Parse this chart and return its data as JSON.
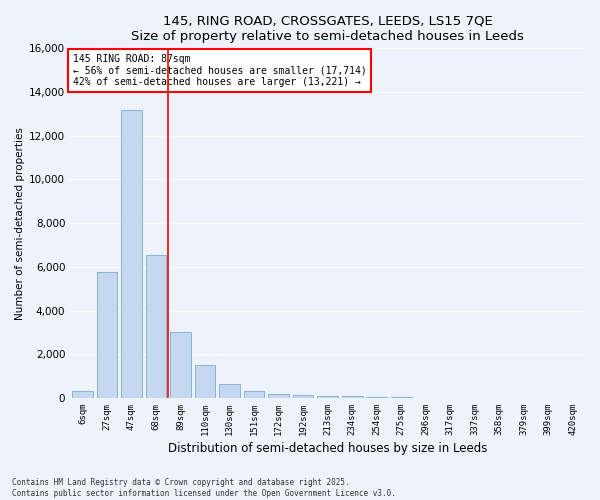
{
  "title1": "145, RING ROAD, CROSSGATES, LEEDS, LS15 7QE",
  "title2": "Size of property relative to semi-detached houses in Leeds",
  "xlabel": "Distribution of semi-detached houses by size in Leeds",
  "ylabel": "Number of semi-detached properties",
  "categories": [
    "6sqm",
    "27sqm",
    "47sqm",
    "68sqm",
    "89sqm",
    "110sqm",
    "130sqm",
    "151sqm",
    "172sqm",
    "192sqm",
    "213sqm",
    "234sqm",
    "254sqm",
    "275sqm",
    "296sqm",
    "317sqm",
    "337sqm",
    "358sqm",
    "379sqm",
    "399sqm",
    "420sqm"
  ],
  "values": [
    300,
    5750,
    13200,
    6550,
    3000,
    1500,
    620,
    320,
    200,
    150,
    100,
    80,
    60,
    40,
    20,
    10,
    5,
    5,
    0,
    0,
    0
  ],
  "bar_color": "#c5d8f0",
  "bar_edge_color": "#7aadd4",
  "vline_x_index": 3.5,
  "vline_color": "red",
  "annotation_title": "145 RING ROAD: 87sqm",
  "annotation_line1": "← 56% of semi-detached houses are smaller (17,714)",
  "annotation_line2": "42% of semi-detached houses are larger (13,221) →",
  "ylim": [
    0,
    16000
  ],
  "yticks": [
    0,
    2000,
    4000,
    6000,
    8000,
    10000,
    12000,
    14000,
    16000
  ],
  "footer1": "Contains HM Land Registry data © Crown copyright and database right 2025.",
  "footer2": "Contains public sector information licensed under the Open Government Licence v3.0.",
  "bg_color": "#eef2fb",
  "grid_color": "#ffffff"
}
